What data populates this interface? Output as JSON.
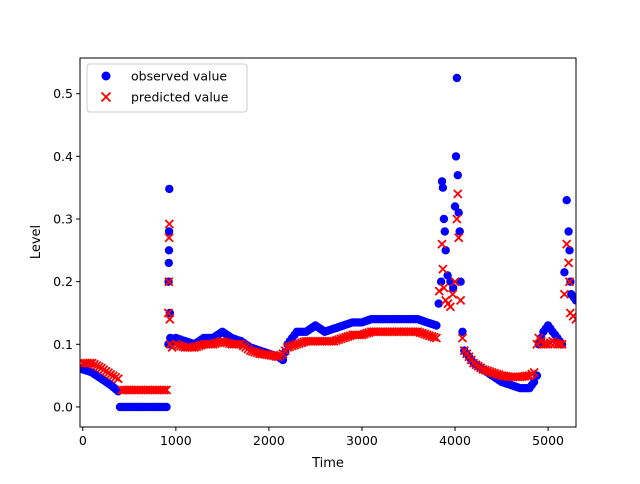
{
  "chart_data": {
    "type": "scatter",
    "title": "",
    "xlabel": "Time",
    "ylabel": "Level",
    "xlim": [
      -30,
      5300
    ],
    "ylim": [
      -0.032,
      0.557
    ],
    "xticks": [
      0,
      1000,
      2000,
      3000,
      4000,
      5000
    ],
    "yticks": [
      0.0,
      0.1,
      0.2,
      0.3,
      0.4,
      0.5
    ],
    "xtick_labels": [
      "0",
      "1000",
      "2000",
      "3000",
      "4000",
      "5000"
    ],
    "ytick_labels": [
      "0.0",
      "0.1",
      "0.2",
      "0.3",
      "0.4",
      "0.5"
    ],
    "grid": false,
    "legend_position": "top-left",
    "series": [
      {
        "name": "observed value",
        "marker": "circle",
        "color": "#0000ff",
        "x": [
          0,
          100,
          200,
          300,
          380,
          400,
          500,
          600,
          700,
          800,
          900,
          920,
          922,
          924,
          926,
          928,
          930,
          935,
          940,
          960,
          1000,
          1100,
          1200,
          1300,
          1400,
          1500,
          1600,
          1700,
          1800,
          1900,
          2000,
          2100,
          2150,
          2200,
          2300,
          2400,
          2500,
          2600,
          2700,
          2800,
          2900,
          3000,
          3100,
          3200,
          3300,
          3400,
          3500,
          3600,
          3700,
          3800,
          3850,
          3860,
          3870,
          3880,
          3890,
          3900,
          3920,
          3950,
          3980,
          4000,
          4010,
          4020,
          4030,
          4040,
          4050,
          4060,
          4080,
          4100,
          4150,
          4200,
          4300,
          4400,
          4500,
          4600,
          4700,
          4800,
          4850,
          4880,
          4900,
          4950,
          5000,
          5050,
          5100,
          5150,
          5200,
          5220,
          5230,
          5240,
          5250,
          5300
        ],
        "y": [
          0.06,
          0.055,
          0.045,
          0.035,
          0.025,
          0.0,
          0.0,
          0.0,
          0.0,
          0.0,
          0.0,
          0.1,
          0.2,
          0.23,
          0.25,
          0.28,
          0.348,
          0.15,
          0.11,
          0.105,
          0.11,
          0.105,
          0.1,
          0.11,
          0.11,
          0.12,
          0.11,
          0.105,
          0.095,
          0.09,
          0.085,
          0.08,
          0.075,
          0.1,
          0.12,
          0.12,
          0.13,
          0.12,
          0.125,
          0.13,
          0.135,
          0.135,
          0.14,
          0.14,
          0.14,
          0.14,
          0.14,
          0.14,
          0.135,
          0.13,
          0.2,
          0.36,
          0.35,
          0.3,
          0.28,
          0.25,
          0.21,
          0.2,
          0.19,
          0.32,
          0.4,
          0.525,
          0.37,
          0.31,
          0.28,
          0.2,
          0.12,
          0.09,
          0.08,
          0.07,
          0.06,
          0.05,
          0.04,
          0.035,
          0.03,
          0.03,
          0.04,
          0.05,
          0.1,
          0.12,
          0.13,
          0.12,
          0.11,
          0.1,
          0.33,
          0.28,
          0.25,
          0.2,
          0.18,
          0.17
        ]
      },
      {
        "name": "predicted value",
        "marker": "x",
        "color": "#ff0000",
        "x": [
          0,
          100,
          200,
          300,
          380,
          420,
          500,
          600,
          700,
          800,
          900,
          920,
          924,
          928,
          930,
          935,
          940,
          960,
          1000,
          1100,
          1200,
          1300,
          1400,
          1500,
          1600,
          1700,
          1800,
          1900,
          2000,
          2100,
          2150,
          2200,
          2300,
          2400,
          2500,
          2600,
          2700,
          2800,
          2900,
          3000,
          3100,
          3200,
          3300,
          3400,
          3500,
          3600,
          3700,
          3800,
          3860,
          3870,
          3880,
          3900,
          3950,
          4000,
          4020,
          4030,
          4040,
          4060,
          4080,
          4100,
          4150,
          4200,
          4300,
          4400,
          4500,
          4600,
          4700,
          4800,
          4850,
          4880,
          4900,
          4950,
          5000,
          5050,
          5100,
          5150,
          5200,
          5220,
          5230,
          5240,
          5300
        ],
        "y": [
          0.07,
          0.07,
          0.062,
          0.052,
          0.045,
          0.027,
          0.027,
          0.027,
          0.027,
          0.027,
          0.027,
          0.15,
          0.2,
          0.27,
          0.292,
          0.14,
          0.1,
          0.095,
          0.1,
          0.095,
          0.095,
          0.1,
          0.1,
          0.105,
          0.1,
          0.1,
          0.09,
          0.085,
          0.083,
          0.08,
          0.085,
          0.095,
          0.1,
          0.105,
          0.105,
          0.105,
          0.105,
          0.11,
          0.115,
          0.115,
          0.12,
          0.12,
          0.12,
          0.12,
          0.12,
          0.12,
          0.115,
          0.11,
          0.26,
          0.22,
          0.19,
          0.17,
          0.16,
          0.2,
          0.3,
          0.34,
          0.27,
          0.17,
          0.11,
          0.09,
          0.08,
          0.07,
          0.06,
          0.055,
          0.05,
          0.048,
          0.048,
          0.05,
          0.055,
          0.1,
          0.11,
          0.1,
          0.1,
          0.105,
          0.1,
          0.1,
          0.26,
          0.23,
          0.2,
          0.15,
          0.14
        ]
      }
    ]
  }
}
